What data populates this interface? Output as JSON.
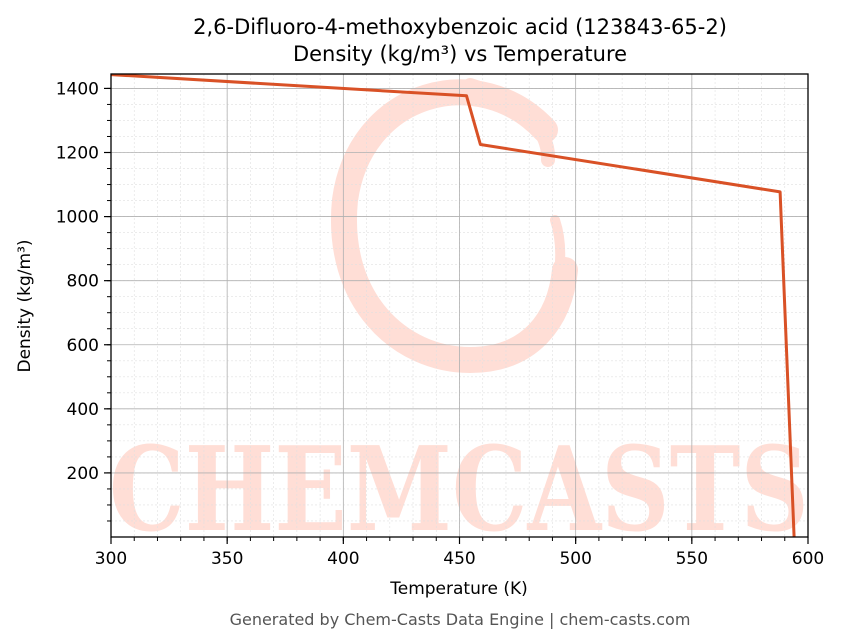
{
  "chart_data": {
    "type": "line",
    "title": "2,6-Difluoro-4-methoxybenzoic acid (123843-65-2)",
    "subtitle": "Density (kg/m³) vs Temperature",
    "xlabel": "Temperature (K)",
    "ylabel": "Density (kg/m³)",
    "xlim": [
      300,
      600
    ],
    "ylim": [
      0,
      1445
    ],
    "xticks": [
      300,
      350,
      400,
      450,
      500,
      550,
      600
    ],
    "yticks": [
      200,
      400,
      600,
      800,
      1000,
      1200,
      1400
    ],
    "grid": true,
    "series": [
      {
        "color": "#d95126",
        "x": [
          300,
          453,
          459,
          588,
          594
        ],
        "y": [
          1443,
          1377,
          1225,
          1077,
          0
        ]
      }
    ]
  },
  "watermark": "CHEMCASTS",
  "footer": "Generated by Chem-Casts Data Engine | chem-casts.com",
  "colors": {
    "line": "#d95126",
    "watermark": "#ffded6",
    "grid_major": "#b0b0b0",
    "grid_minor": "#e0e0e0"
  }
}
